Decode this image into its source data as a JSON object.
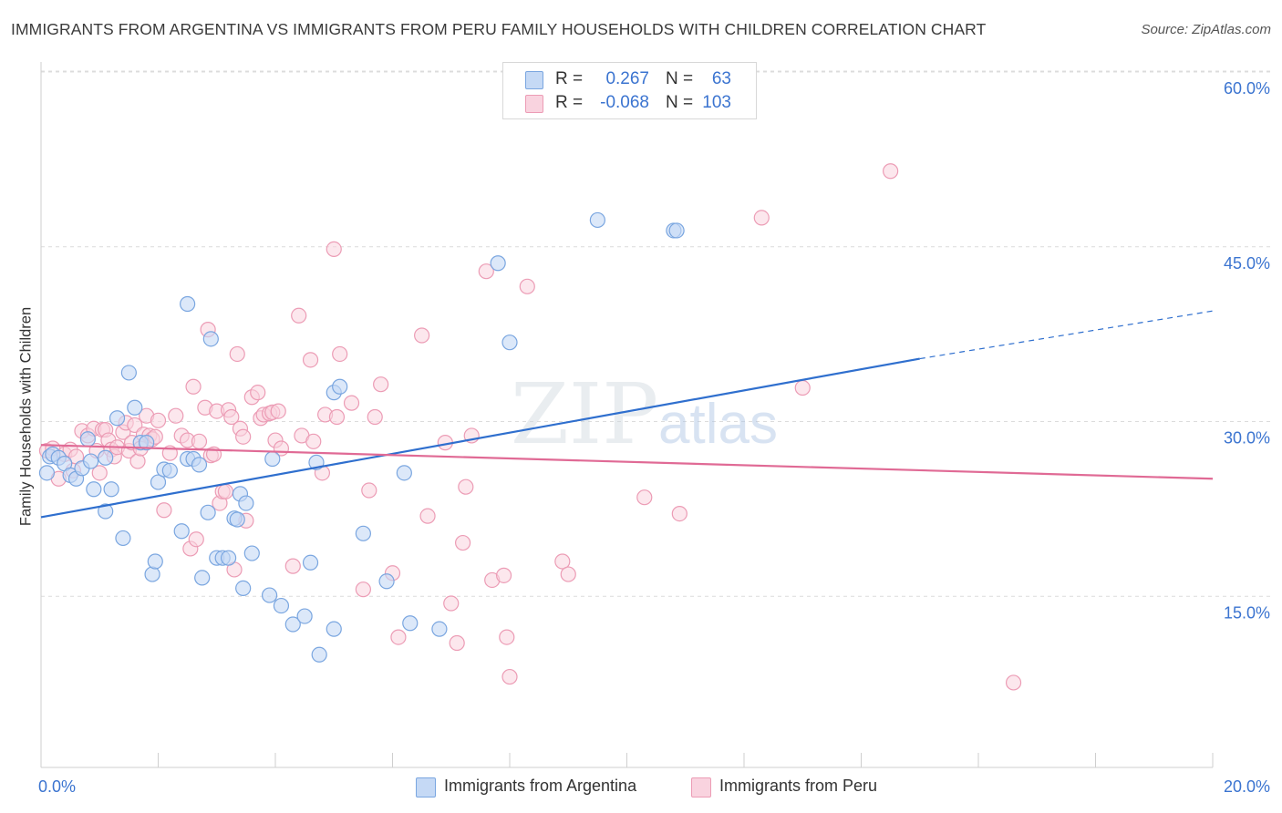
{
  "title": "IMMIGRANTS FROM ARGENTINA VS IMMIGRANTS FROM PERU FAMILY HOUSEHOLDS WITH CHILDREN CORRELATION CHART",
  "source": "Source: ZipAtlas.com",
  "legend_top": {
    "rows": [
      {
        "r_label": "R =",
        "r_value": "0.267",
        "n_label": "N =",
        "n_value": "63"
      },
      {
        "r_label": "R =",
        "r_value": "-0.068",
        "n_label": "N =",
        "n_value": "103"
      }
    ]
  },
  "colors": {
    "argentina_fill": "#c5d9f5",
    "argentina_stroke": "#7aa6e0",
    "argentina_line": "#2f6fce",
    "peru_fill": "#f9d3df",
    "peru_stroke": "#ec9cb5",
    "peru_line": "#e06a95",
    "axis_text": "#3b74d0",
    "grid": "#dcdcdc"
  },
  "chart_data": {
    "type": "scatter",
    "title": "IMMIGRANTS FROM ARGENTINA VS IMMIGRANTS FROM PERU FAMILY HOUSEHOLDS WITH CHILDREN CORRELATION CHART",
    "xlabel": "",
    "ylabel": "Family Households with Children",
    "xlim": [
      0,
      20
    ],
    "ylim": [
      0,
      60
    ],
    "x_tick_labels": [
      "0.0%",
      "20.0%"
    ],
    "y_ticks": [
      15,
      30,
      45,
      60
    ],
    "y_tick_labels": [
      "15.0%",
      "30.0%",
      "45.0%",
      "60.0%"
    ],
    "grid": true,
    "legend_position": "bottom",
    "watermark": "ZIPatlas",
    "series": [
      {
        "name": "Immigrants from Argentina",
        "r": 0.267,
        "n": 63,
        "trend": {
          "x": [
            0,
            15
          ],
          "y": [
            23.2,
            36.8
          ],
          "dashed_to": [
            20,
            40.9
          ]
        },
        "points": [
          [
            0.1,
            27.0
          ],
          [
            0.15,
            28.4
          ],
          [
            0.2,
            28.6
          ],
          [
            0.3,
            28.3
          ],
          [
            0.4,
            27.8
          ],
          [
            0.5,
            26.8
          ],
          [
            0.6,
            26.5
          ],
          [
            0.7,
            27.4
          ],
          [
            0.8,
            29.9
          ],
          [
            0.85,
            28.0
          ],
          [
            0.9,
            25.6
          ],
          [
            1.1,
            28.3
          ],
          [
            1.1,
            23.7
          ],
          [
            1.2,
            25.6
          ],
          [
            1.3,
            31.7
          ],
          [
            1.4,
            21.4
          ],
          [
            1.5,
            35.6
          ],
          [
            1.6,
            32.6
          ],
          [
            1.7,
            29.6
          ],
          [
            1.8,
            29.6
          ],
          [
            1.9,
            18.3
          ],
          [
            1.95,
            19.4
          ],
          [
            2.0,
            26.2
          ],
          [
            2.1,
            27.3
          ],
          [
            2.2,
            27.2
          ],
          [
            2.4,
            22.0
          ],
          [
            2.5,
            28.2
          ],
          [
            2.5,
            41.5
          ],
          [
            2.6,
            28.2
          ],
          [
            2.7,
            27.7
          ],
          [
            2.75,
            18.0
          ],
          [
            2.85,
            23.6
          ],
          [
            2.9,
            38.5
          ],
          [
            3.0,
            19.7
          ],
          [
            3.1,
            19.7
          ],
          [
            3.2,
            19.7
          ],
          [
            3.3,
            23.1
          ],
          [
            3.35,
            23.0
          ],
          [
            3.4,
            25.2
          ],
          [
            3.45,
            17.1
          ],
          [
            3.5,
            24.4
          ],
          [
            3.6,
            20.1
          ],
          [
            3.9,
            16.5
          ],
          [
            3.95,
            28.2
          ],
          [
            4.1,
            15.6
          ],
          [
            4.3,
            14.0
          ],
          [
            4.5,
            14.7
          ],
          [
            4.6,
            19.3
          ],
          [
            4.7,
            27.9
          ],
          [
            4.75,
            11.4
          ],
          [
            5.0,
            33.9
          ],
          [
            5.0,
            13.6
          ],
          [
            5.1,
            34.4
          ],
          [
            5.5,
            21.8
          ],
          [
            5.9,
            17.7
          ],
          [
            6.2,
            27.0
          ],
          [
            6.3,
            14.1
          ],
          [
            6.8,
            13.6
          ],
          [
            7.8,
            45.0
          ],
          [
            8.0,
            38.2
          ],
          [
            9.5,
            48.7
          ],
          [
            10.8,
            47.8
          ],
          [
            10.85,
            47.8
          ]
        ]
      },
      {
        "name": "Immigrants from Peru",
        "r": -0.068,
        "n": 103,
        "trend": {
          "x": [
            0,
            20
          ],
          "y": [
            29.4,
            26.5
          ]
        },
        "points": [
          [
            0.1,
            28.9
          ],
          [
            0.2,
            29.1
          ],
          [
            0.3,
            26.5
          ],
          [
            0.4,
            28.6
          ],
          [
            0.5,
            29.0
          ],
          [
            0.55,
            27.2
          ],
          [
            0.6,
            28.4
          ],
          [
            0.7,
            30.6
          ],
          [
            0.8,
            30.2
          ],
          [
            0.9,
            30.8
          ],
          [
            0.95,
            28.9
          ],
          [
            1.0,
            27.0
          ],
          [
            1.05,
            30.7
          ],
          [
            1.1,
            30.7
          ],
          [
            1.15,
            29.8
          ],
          [
            1.2,
            29.0
          ],
          [
            1.25,
            28.4
          ],
          [
            1.3,
            29.2
          ],
          [
            1.4,
            30.5
          ],
          [
            1.45,
            31.3
          ],
          [
            1.5,
            28.9
          ],
          [
            1.55,
            29.6
          ],
          [
            1.6,
            31.1
          ],
          [
            1.65,
            28.0
          ],
          [
            1.7,
            29.1
          ],
          [
            1.75,
            30.3
          ],
          [
            1.8,
            31.9
          ],
          [
            1.85,
            30.2
          ],
          [
            1.9,
            29.9
          ],
          [
            1.95,
            30.1
          ],
          [
            2.0,
            31.5
          ],
          [
            2.1,
            23.8
          ],
          [
            2.2,
            28.7
          ],
          [
            2.3,
            31.9
          ],
          [
            2.4,
            30.2
          ],
          [
            2.5,
            29.8
          ],
          [
            2.55,
            20.5
          ],
          [
            2.6,
            34.4
          ],
          [
            2.65,
            21.3
          ],
          [
            2.7,
            29.7
          ],
          [
            2.8,
            32.6
          ],
          [
            2.85,
            39.3
          ],
          [
            2.9,
            28.5
          ],
          [
            2.95,
            28.6
          ],
          [
            3.0,
            32.3
          ],
          [
            3.05,
            24.4
          ],
          [
            3.1,
            25.4
          ],
          [
            3.15,
            25.4
          ],
          [
            3.2,
            32.4
          ],
          [
            3.25,
            31.8
          ],
          [
            3.3,
            18.7
          ],
          [
            3.35,
            37.2
          ],
          [
            3.4,
            30.8
          ],
          [
            3.45,
            30.1
          ],
          [
            3.5,
            22.9
          ],
          [
            3.6,
            33.5
          ],
          [
            3.7,
            33.9
          ],
          [
            3.75,
            31.7
          ],
          [
            3.8,
            32.0
          ],
          [
            3.9,
            32.1
          ],
          [
            3.95,
            32.2
          ],
          [
            4.0,
            29.8
          ],
          [
            4.05,
            32.3
          ],
          [
            4.1,
            29.1
          ],
          [
            4.3,
            19.0
          ],
          [
            4.4,
            40.5
          ],
          [
            4.45,
            30.2
          ],
          [
            4.6,
            36.7
          ],
          [
            4.65,
            29.7
          ],
          [
            4.8,
            27.0
          ],
          [
            4.85,
            32.0
          ],
          [
            5.0,
            46.2
          ],
          [
            5.05,
            31.8
          ],
          [
            5.1,
            37.2
          ],
          [
            5.3,
            33.0
          ],
          [
            5.5,
            17.0
          ],
          [
            5.6,
            25.5
          ],
          [
            5.7,
            31.8
          ],
          [
            5.8,
            34.6
          ],
          [
            6.0,
            18.4
          ],
          [
            6.1,
            12.9
          ],
          [
            6.5,
            38.8
          ],
          [
            6.6,
            23.3
          ],
          [
            6.9,
            29.6
          ],
          [
            7.0,
            15.8
          ],
          [
            7.1,
            12.4
          ],
          [
            7.2,
            21.0
          ],
          [
            7.25,
            25.8
          ],
          [
            7.35,
            30.2
          ],
          [
            7.6,
            44.3
          ],
          [
            7.7,
            17.8
          ],
          [
            7.9,
            18.2
          ],
          [
            7.95,
            12.9
          ],
          [
            8.0,
            9.5
          ],
          [
            8.3,
            43.0
          ],
          [
            8.9,
            19.4
          ],
          [
            9.0,
            18.3
          ],
          [
            10.3,
            24.9
          ],
          [
            10.9,
            23.5
          ],
          [
            12.3,
            48.9
          ],
          [
            13.0,
            34.3
          ],
          [
            14.5,
            52.9
          ],
          [
            16.6,
            9.0
          ]
        ]
      }
    ]
  },
  "bottom_legend": [
    {
      "label": "Immigrants from Argentina"
    },
    {
      "label": "Immigrants from Peru"
    }
  ]
}
